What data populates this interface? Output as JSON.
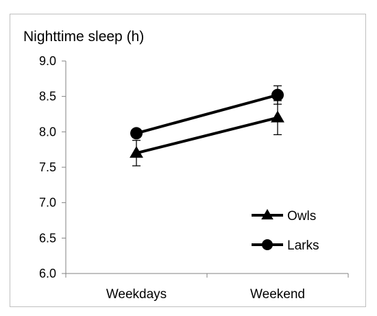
{
  "chart_data": {
    "type": "line",
    "title": "Nighttime sleep (h)",
    "xlabel": "",
    "ylabel": "",
    "categories": [
      "Weekdays",
      "Weekend"
    ],
    "ylim": [
      6.0,
      9.0
    ],
    "yticks": [
      "6.0",
      "6.5",
      "7.0",
      "7.5",
      "8.0",
      "8.5",
      "9.0"
    ],
    "grid": false,
    "legend_position": "bottom-right",
    "series": [
      {
        "name": "Owls",
        "marker": "triangle",
        "color": "#000000",
        "values": [
          7.7,
          8.2
        ],
        "errors": [
          0.18,
          0.24
        ]
      },
      {
        "name": "Larks",
        "marker": "circle",
        "color": "#000000",
        "values": [
          7.98,
          8.52
        ],
        "errors": [
          0.06,
          0.13
        ]
      }
    ]
  }
}
